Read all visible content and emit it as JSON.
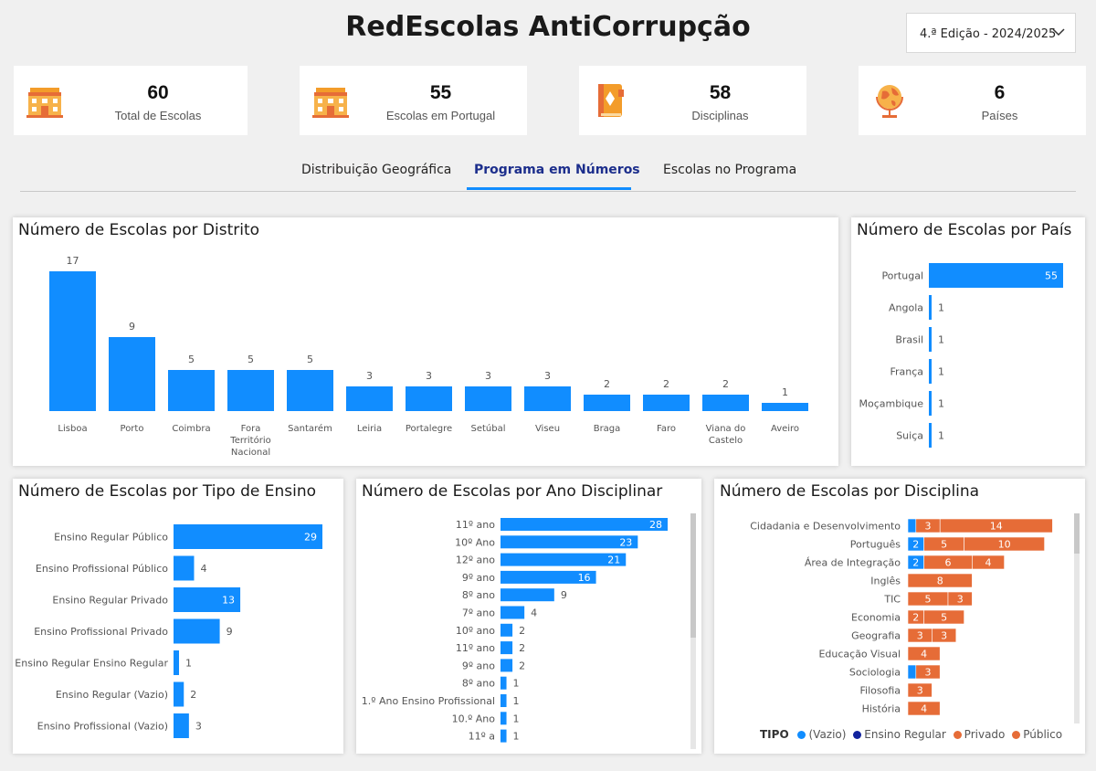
{
  "header": {
    "title": "RedEscolas AntiCorrupção",
    "edition": "4.ª Edição - 2024/2025"
  },
  "kpis": [
    {
      "value": "60",
      "label": "Total de Escolas",
      "icon": "school-icon"
    },
    {
      "value": "55",
      "label": "Escolas em Portugal",
      "icon": "school-icon"
    },
    {
      "value": "58",
      "label": "Disciplinas",
      "icon": "book-icon"
    },
    {
      "value": "6",
      "label": "Países",
      "icon": "globe-icon"
    }
  ],
  "tabs": [
    {
      "label": "Distribuição Geográfica",
      "active": false
    },
    {
      "label": "Programa em Números",
      "active": true
    },
    {
      "label": "Escolas no Programa",
      "active": false
    }
  ],
  "colors": {
    "blue": "#118dff",
    "orange": "#e66c37",
    "navy": "#12239e",
    "accent_tab": "#1c2e8c"
  },
  "legend": {
    "title": "TIPO",
    "items": [
      {
        "label": "(Vazio)",
        "color": "#118dff"
      },
      {
        "label": "Ensino Regular",
        "color": "#12239e"
      },
      {
        "label": "Privado",
        "color": "#e66c37"
      },
      {
        "label": "Público",
        "color": "#e66c37"
      }
    ]
  },
  "chart_data": [
    {
      "id": "distrito",
      "type": "bar",
      "title": "Número de Escolas por Distrito",
      "categories": [
        "Lisboa",
        "Porto",
        "Coimbra",
        "Fora Território Nacional",
        "Santarém",
        "Leiria",
        "Portalegre",
        "Setúbal",
        "Viseu",
        "Braga",
        "Faro",
        "Viana do Castelo",
        "Aveiro"
      ],
      "values": [
        17,
        9,
        5,
        5,
        5,
        3,
        3,
        3,
        3,
        2,
        2,
        2,
        1
      ]
    },
    {
      "id": "pais",
      "type": "bar",
      "orientation": "horizontal",
      "title": "Número de Escolas por País",
      "categories": [
        "Portugal",
        "Angola",
        "Brasil",
        "França",
        "Moçambique",
        "Suiça"
      ],
      "values": [
        55,
        1,
        1,
        1,
        1,
        1
      ]
    },
    {
      "id": "tipo",
      "type": "bar",
      "orientation": "horizontal",
      "title": "Número de Escolas por Tipo de Ensino",
      "categories": [
        "Ensino Regular Público",
        "Ensino Profissional Público",
        "Ensino Regular Privado",
        "Ensino Profissional Privado",
        "Ensino Regular Ensino Regular",
        "Ensino Regular (Vazio)",
        "Ensino Profissional (Vazio)"
      ],
      "values": [
        29,
        4,
        13,
        9,
        1,
        2,
        3
      ]
    },
    {
      "id": "ano",
      "type": "bar",
      "orientation": "horizontal",
      "title": "Número de Escolas por Ano Disciplinar",
      "categories": [
        "11º ano",
        "10º Ano",
        "12º ano",
        "9º ano",
        "8º ano",
        "7º ano",
        "10º ano",
        "11º ano",
        "9º ano",
        "8º ano",
        "1.º Ano Ensino Profissional",
        "10.º Ano",
        "11º a"
      ],
      "values": [
        28,
        23,
        21,
        16,
        9,
        4,
        2,
        2,
        2,
        1,
        1,
        1,
        1
      ]
    },
    {
      "id": "disciplina",
      "type": "bar",
      "orientation": "horizontal",
      "stacked": true,
      "title": "Número de Escolas por Disciplina",
      "categories": [
        "Cidadania e Desenvolvimento",
        "Português",
        "Área de Integração",
        "Inglês",
        "TIC",
        "Economia",
        "Geografia",
        "Educação Visual",
        "Sociologia",
        "Filosofia",
        "História"
      ],
      "series": [
        {
          "name": "(Vazio)",
          "color": "#118dff",
          "values": [
            1,
            2,
            2,
            0,
            0,
            0,
            0,
            0,
            1,
            0,
            0
          ]
        },
        {
          "name": "Privado",
          "color": "#e66c37",
          "values": [
            3,
            5,
            6,
            8,
            5,
            2,
            3,
            4,
            3,
            3,
            4
          ]
        },
        {
          "name": "Público",
          "color": "#e66c37",
          "values": [
            14,
            10,
            4,
            0,
            3,
            5,
            3,
            0,
            0,
            0,
            0
          ]
        }
      ]
    }
  ]
}
